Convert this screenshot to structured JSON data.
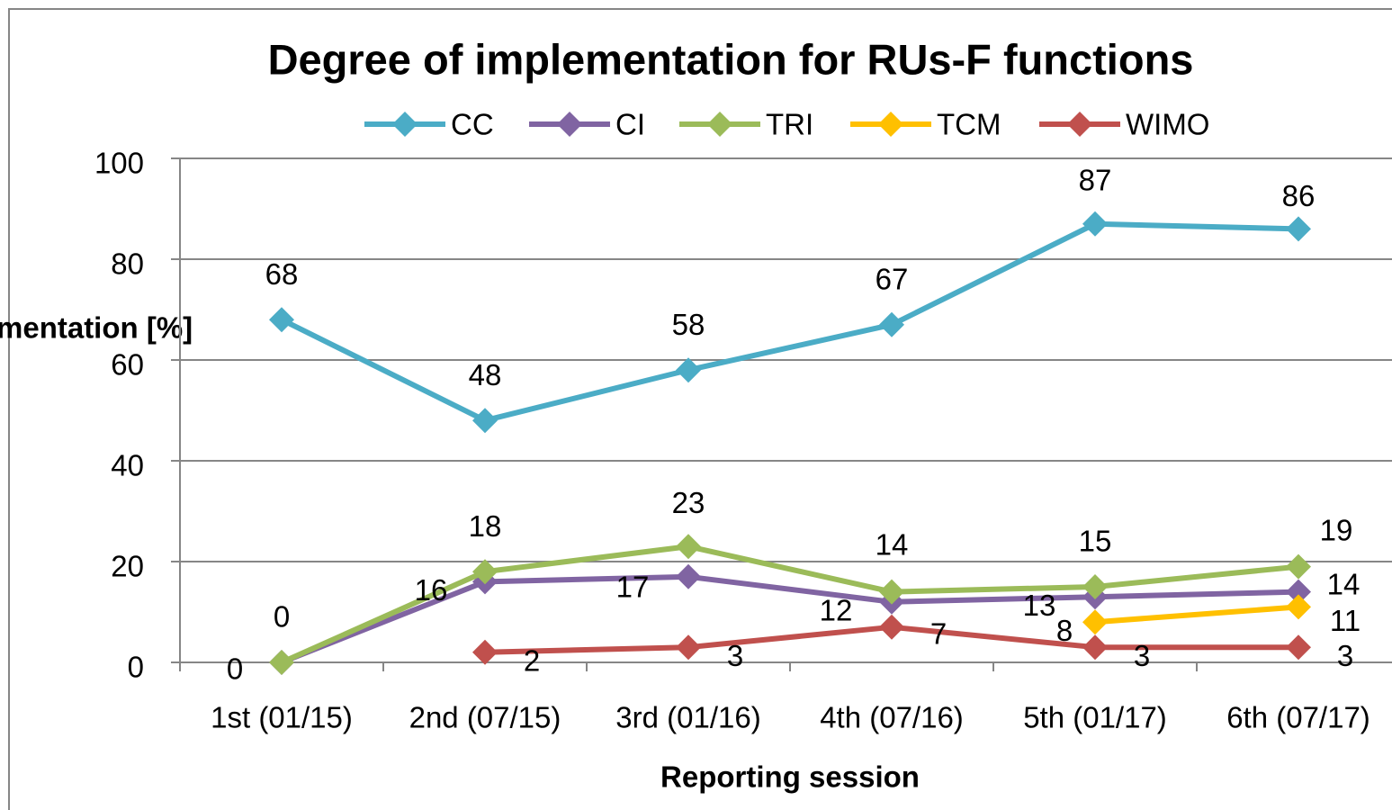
{
  "chart_data": {
    "type": "line",
    "title": "Degree of implementation for RUs-F functions",
    "y_axis_label": "mentation [%]",
    "x_axis_label": "Reporting session",
    "categories": [
      "1st (01/15)",
      "2nd (07/15)",
      "3rd (01/16)",
      "4th (07/16)",
      "5th (01/17)",
      "6th (07/17)"
    ],
    "series": [
      {
        "name": "CC",
        "color": "#4bacc6",
        "values": [
          68,
          48,
          58,
          67,
          87,
          86
        ]
      },
      {
        "name": "CI",
        "color": "#8064a2",
        "values": [
          0,
          16,
          17,
          12,
          13,
          14
        ]
      },
      {
        "name": "TRI",
        "color": "#9bbb59",
        "values": [
          0,
          18,
          23,
          14,
          15,
          19
        ]
      },
      {
        "name": "TCM",
        "color": "#ffc000",
        "values": [
          null,
          null,
          null,
          null,
          8,
          11
        ]
      },
      {
        "name": "WIMO",
        "color": "#c0504d",
        "values": [
          null,
          2,
          3,
          7,
          3,
          3
        ]
      }
    ],
    "ylim": [
      0,
      100
    ],
    "yticks": [
      0,
      20,
      40,
      60,
      80,
      100
    ],
    "grid": true,
    "legend": "top"
  }
}
